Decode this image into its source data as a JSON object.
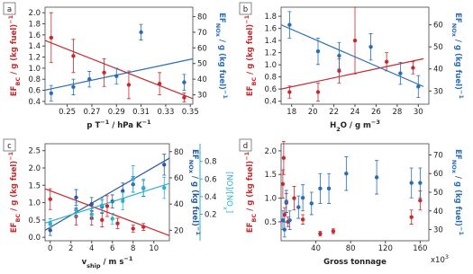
{
  "chart_data": [
    {
      "type": "scatter",
      "label": "a",
      "xlabel": [
        {
          "text": "p T"
        },
        {
          "text": "−1",
          "script": "sup"
        },
        {
          "text": " / hPa K"
        },
        {
          "text": "−1",
          "script": "sup"
        }
      ],
      "ylabel": [
        {
          "text": "EF"
        },
        {
          "text": "BC",
          "script": "sub"
        },
        {
          "text": " / g (kg fuel)"
        },
        {
          "text": "−1",
          "script": "sup"
        }
      ],
      "y2label": [
        {
          "text": "EF"
        },
        {
          "text": "NOx",
          "script": "sub"
        },
        {
          "text": " / g (kg fuel)"
        },
        {
          "text": "−1",
          "script": "sup"
        }
      ],
      "xlim": [
        0.232,
        0.352
      ],
      "xticks": [
        0.25,
        0.27,
        0.29,
        0.31,
        0.33,
        0.35
      ],
      "ylim": [
        0.35,
        2.1
      ],
      "yticks": [
        0.4,
        0.6,
        0.8,
        {
          "value": 1,
          "label": "1.0"
        },
        1.2,
        1.4,
        1.6,
        1.8,
        {
          "value": 2,
          "label": "2.0"
        }
      ],
      "y2lim": [
        24,
        86
      ],
      "y2ticks": [
        30,
        40,
        50,
        60,
        70,
        80
      ],
      "series": [
        {
          "mode": "markers",
          "axis": "y",
          "color": "#c62a2f",
          "x": [
            0.237,
            0.255,
            0.28,
            0.3,
            0.325,
            0.345
          ],
          "values": [
            1.55,
            1.22,
            0.92,
            0.7,
            0.72,
            0.47
          ],
          "errors": [
            0.45,
            0.3,
            0.25,
            0.25,
            0.2,
            0.08
          ]
        },
        {
          "mode": "line",
          "axis": "y",
          "color": "#c62a2f",
          "x": [
            0.232,
            0.352
          ],
          "values": [
            1.5,
            0.45
          ]
        },
        {
          "mode": "markers",
          "axis": "y2",
          "color": "#2a6db5",
          "x": [
            0.237,
            0.255,
            0.268,
            0.29,
            0.31,
            0.345
          ],
          "values": [
            31,
            35,
            40,
            42,
            70,
            38
          ],
          "errors": [
            5,
            5,
            5,
            5,
            5,
            5
          ]
        },
        {
          "mode": "line",
          "axis": "y2",
          "color": "#2a6db5",
          "x": [
            0.232,
            0.352
          ],
          "values": [
            33,
            53
          ]
        }
      ]
    },
    {
      "type": "scatter",
      "label": "b",
      "xlabel": [
        {
          "text": "H"
        },
        {
          "text": "2",
          "script": "sub"
        },
        {
          "text": "O / g m"
        },
        {
          "text": "−3",
          "script": "sup"
        }
      ],
      "ylabel": [
        {
          "text": "EF"
        },
        {
          "text": "BC",
          "script": "sub"
        },
        {
          "text": " / g (kg fuel)"
        },
        {
          "text": "−1",
          "script": "sup"
        }
      ],
      "y2label": [
        {
          "text": "EF"
        },
        {
          "text": "NOx",
          "script": "sub"
        },
        {
          "text": " / g (kg fuel)"
        },
        {
          "text": "−1",
          "script": "sup"
        }
      ],
      "xlim": [
        17,
        31
      ],
      "xticks": [
        18,
        20,
        22,
        24,
        26,
        28,
        30
      ],
      "ylim": [
        0.35,
        1.95
      ],
      "yticks": [
        0.4,
        0.6,
        0.8,
        {
          "value": 1,
          "label": "1.0"
        },
        1.2,
        1.4,
        1.6,
        1.8
      ],
      "y2lim": [
        24,
        68
      ],
      "y2ticks": [
        30,
        40,
        50,
        60
      ],
      "series": [
        {
          "mode": "markers",
          "axis": "y",
          "color": "#c62a2f",
          "x": [
            17.8,
            20.5,
            22.5,
            24,
            27,
            29.5
          ],
          "values": [
            0.55,
            0.55,
            0.9,
            1.4,
            1.05,
            0.95
          ],
          "errors": [
            0.1,
            0.15,
            0.2,
            0.55,
            0.15,
            0.1
          ]
        },
        {
          "mode": "line",
          "axis": "y",
          "color": "#c62a2f",
          "x": [
            17,
            30.5
          ],
          "values": [
            0.6,
            1.1
          ]
        },
        {
          "mode": "markers",
          "axis": "y2",
          "color": "#2a6db5",
          "x": [
            17.8,
            20.5,
            22.5,
            25.5,
            28.3,
            30
          ],
          "values": [
            60,
            48,
            46,
            50,
            38,
            32
          ],
          "errors": [
            6,
            6,
            6,
            6,
            5,
            5
          ]
        },
        {
          "mode": "line",
          "axis": "y2",
          "color": "#2a6db5",
          "x": [
            17,
            30.5
          ],
          "values": [
            60,
            32
          ]
        }
      ]
    },
    {
      "type": "scatter",
      "label": "c",
      "xlabel": [
        {
          "text": "v"
        },
        {
          "text": "ship",
          "script": "sub"
        },
        {
          "text": " / m s"
        },
        {
          "text": "−1",
          "script": "sup"
        }
      ],
      "ylabel": [
        {
          "text": "EF"
        },
        {
          "text": "BC",
          "script": "sub"
        },
        {
          "text": " / g (kg fuel)"
        },
        {
          "text": "−1",
          "script": "sup"
        }
      ],
      "y2label": [
        {
          "text": "EF"
        },
        {
          "text": "NOx",
          "script": "sub"
        },
        {
          "text": " / g (kg fuel)"
        },
        {
          "text": "−1",
          "script": "sup"
        }
      ],
      "y3label": [
        {
          "text": "[NO]/[NO"
        },
        {
          "text": "x",
          "script": "sub"
        },
        {
          "text": "]"
        }
      ],
      "xlim": [
        -0.5,
        11.5
      ],
      "xticks": [
        0,
        2,
        4,
        6,
        8,
        10
      ],
      "ylim": [
        -0.1,
        2.7
      ],
      "yticks": [
        {
          "value": 0,
          "label": "0.0"
        },
        0.5,
        {
          "value": 1,
          "label": "1.0"
        },
        1.5,
        {
          "value": 2,
          "label": "2.0"
        },
        2.5
      ],
      "y2lim": [
        12,
        86
      ],
      "y2ticks": [
        20,
        40,
        60,
        80
      ],
      "y3lim": [
        -0.1,
        1.0
      ],
      "y3ticks": [
        0.2,
        0.4,
        0.6,
        0.8
      ],
      "series": [
        {
          "mode": "markers",
          "axis": "y",
          "color": "#c62a2f",
          "x": [
            0,
            2.5,
            4,
            5,
            5.5,
            6.5,
            8,
            9
          ],
          "values": [
            1.1,
            0.6,
            0.55,
            0.5,
            0.9,
            0.4,
            0.25,
            0.3
          ],
          "errors": [
            0.3,
            0.25,
            0.2,
            0.2,
            0.3,
            0.15,
            0.1,
            0.1
          ]
        },
        {
          "mode": "line",
          "axis": "y",
          "color": "#c62a2f",
          "x": [
            -0.5,
            11.5
          ],
          "values": [
            1.4,
            0.05
          ]
        },
        {
          "mode": "markers",
          "axis": "y2",
          "color": "#2a5aa0",
          "x": [
            0,
            2.5,
            4,
            5,
            6,
            7,
            8,
            9,
            11
          ],
          "values": [
            20,
            45,
            40,
            38,
            42,
            50,
            55,
            52,
            70
          ],
          "errors": [
            4,
            6,
            5,
            5,
            5,
            6,
            6,
            6,
            8
          ]
        },
        {
          "mode": "line",
          "axis": "y2",
          "color": "#2a5aa0",
          "x": [
            -0.5,
            11.5
          ],
          "values": [
            20,
            75
          ]
        },
        {
          "mode": "markers",
          "axis": "y3",
          "color": "#2ab0d0",
          "x": [
            0,
            2.5,
            4,
            5,
            6,
            7,
            8,
            9,
            11
          ],
          "values": [
            0.1,
            0.25,
            0.2,
            0.3,
            0.15,
            0.35,
            0.6,
            0.5,
            0.5
          ],
          "errors": [
            0.05,
            0.08,
            0.06,
            0.08,
            0.06,
            0.1,
            0.15,
            0.1,
            0.12
          ]
        },
        {
          "mode": "line",
          "axis": "y3",
          "color": "#2ab0d0",
          "x": [
            -0.5,
            11.5
          ],
          "values": [
            0.1,
            0.55
          ]
        }
      ]
    },
    {
      "type": "scatter",
      "label": "d",
      "xlabel": [
        {
          "text": "Gross tonnage"
        }
      ],
      "xoffset": [
        {
          "text": "x10"
        },
        {
          "text": "3",
          "script": "sup"
        }
      ],
      "ylabel": [
        {
          "text": "EF"
        },
        {
          "text": "BC",
          "script": "sub"
        },
        {
          "text": " / g (kg fuel)"
        },
        {
          "text": "−1",
          "script": "sup"
        }
      ],
      "y2label": [
        {
          "text": "EF"
        },
        {
          "text": "NOx",
          "script": "sub"
        },
        {
          "text": " / g (kg fuel)"
        },
        {
          "text": "−1",
          "script": "sup"
        }
      ],
      "xlim": [
        0,
        170
      ],
      "xticks": [
        40,
        80,
        120,
        160
      ],
      "ylim": [
        0.1,
        2.15
      ],
      "yticks": [
        0.5,
        {
          "value": 1,
          "label": "1.0"
        },
        1.5,
        {
          "value": 2,
          "label": "2.0"
        }
      ],
      "y2lim": [
        24,
        76
      ],
      "y2ticks": [
        30,
        40,
        50,
        60,
        70
      ],
      "series": [
        {
          "mode": "markers",
          "axis": "y",
          "color": "#c62a2f",
          "x": [
            2,
            3,
            4,
            6,
            8,
            15,
            25,
            45,
            60,
            150,
            160
          ],
          "values": [
            1.3,
            1.85,
            0.65,
            0.9,
            0.5,
            1.0,
            0.55,
            0.25,
            0.3,
            0.6,
            0.95
          ],
          "errors": [
            0.3,
            0.35,
            0.15,
            0.2,
            0.1,
            0.25,
            0.1,
            0.05,
            0.05,
            0.15,
            0.2
          ]
        },
        {
          "mode": "markers",
          "axis": "y2",
          "color": "#2a6db5",
          "x": [
            2,
            4,
            6,
            10,
            20,
            25,
            35,
            45,
            55,
            75,
            110,
            150,
            160
          ],
          "values": [
            35,
            30,
            45,
            35,
            42,
            47,
            44,
            52,
            52,
            60,
            58,
            55,
            55
          ],
          "errors": [
            5,
            4,
            6,
            5,
            6,
            7,
            6,
            8,
            8,
            9,
            9,
            8,
            8
          ]
        }
      ]
    }
  ]
}
